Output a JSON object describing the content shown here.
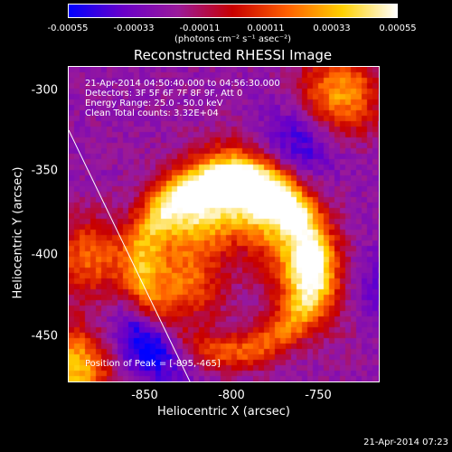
{
  "colorbar": {
    "ticks": [
      "-0.00055",
      "-0.00033",
      "-0.00011",
      "0.00011",
      "0.00033",
      "0.00055"
    ],
    "units": "(photons cm⁻² s⁻¹ asec⁻²)"
  },
  "title": "Reconstructed RHESSI Image",
  "info": {
    "time": "21-Apr-2014 04:50:40.000 to 04:56:30.000",
    "detectors": "Detectors: 3F 5F 6F 7F 8F 9F, Att 0",
    "energy": "Energy Range: 25.0 - 50.0 keV",
    "clean": "Clean    Total counts: 3.32E+04"
  },
  "peak": "Position of Peak = [-895,-465]",
  "stamp": "21-Apr-2014 07:23",
  "chart_data": {
    "type": "heatmap",
    "title": "Reconstructed RHESSI Image",
    "xlabel": "Heliocentric X (arcsec)",
    "ylabel": "Heliocentric Y (arcsec)",
    "xlim": [
      -895,
      -820
    ],
    "ylim": [
      -475,
      -290
    ],
    "x_ticks": [
      "-850",
      "-800",
      "-750"
    ],
    "y_ticks": [
      "-300",
      "-350",
      "-400",
      "-450"
    ],
    "colorbar_range": [
      -0.00055,
      0.00055
    ],
    "colormap": [
      "#0000ff",
      "#6a00c8",
      "#9a1a9a",
      "#c80000",
      "#ff6000",
      "#ffd000",
      "#ffffff"
    ],
    "sources": [
      {
        "x": -825,
        "y": -375,
        "intensity": 0.9
      },
      {
        "x": -800,
        "y": -355,
        "intensity": 0.8
      },
      {
        "x": -778,
        "y": -370,
        "intensity": 0.9
      },
      {
        "x": -760,
        "y": -405,
        "intensity": 0.75
      },
      {
        "x": -832,
        "y": -420,
        "intensity": 0.8
      },
      {
        "x": -895,
        "y": -465,
        "intensity": 1.0
      },
      {
        "x": -885,
        "y": -400,
        "intensity": 0.65
      },
      {
        "x": -740,
        "y": -305,
        "intensity": 0.85
      },
      {
        "x": -740,
        "y": -425,
        "intensity": 0.55
      }
    ],
    "negative_regions": [
      {
        "x": -845,
        "y": -445,
        "intensity": -0.9
      },
      {
        "x": -765,
        "y": -335,
        "intensity": -0.5
      },
      {
        "x": -730,
        "y": -420,
        "intensity": -0.6
      }
    ]
  }
}
